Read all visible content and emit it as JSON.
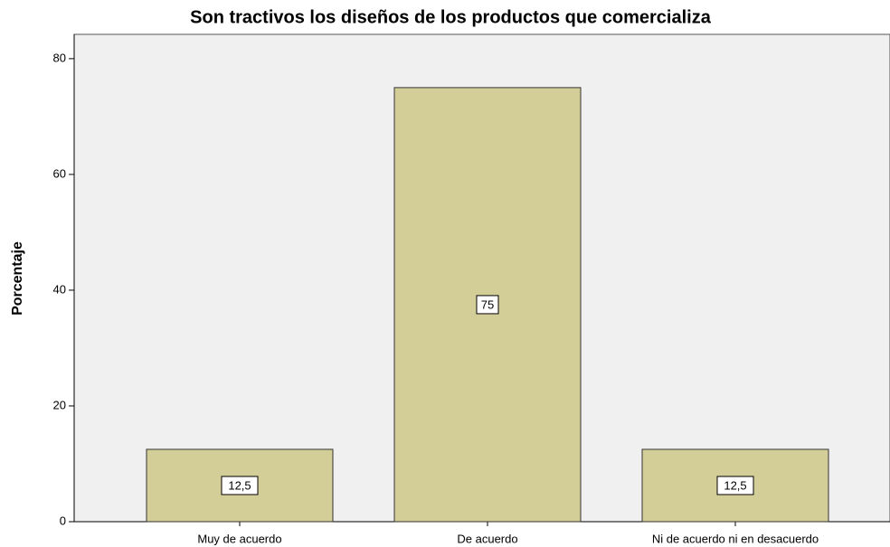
{
  "chart_data": {
    "type": "bar",
    "title": "Son tractivos los diseños de los productos que comercializa",
    "y_label": "Porcentaje",
    "categories": [
      "Muy de acuerdo",
      "De acuerdo",
      "Ni de acuerdo ni en desacuerdo"
    ],
    "values": [
      12.5,
      75,
      12.5
    ],
    "value_labels": [
      "12,5",
      "75",
      "12,5"
    ],
    "color": "#d3ce98",
    "ylim": [
      0,
      84.2
    ],
    "yticks": [
      0,
      20,
      40,
      60,
      80
    ],
    "grid": false
  }
}
